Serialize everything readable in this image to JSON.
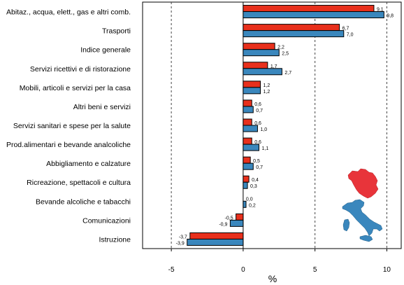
{
  "chart_data": {
    "type": "bar",
    "orientation": "horizontal",
    "categories": [
      "Abitaz., acqua, elett., gas e altri comb.",
      "Trasporti",
      "Indice generale",
      "Servizi ricettivi e di ristorazione",
      "Mobili, articoli e servizi per la casa",
      "Altri beni e servizi",
      "Servizi sanitari e spese per la salute",
      "Prod.alimentari e bevande analcoliche",
      "Abbigliamento e calzature",
      "Ricreazione, spettacoli e cultura",
      "Bevande alcoliche e tabacchi",
      "Comunicazioni",
      "Istruzione"
    ],
    "series": [
      {
        "color": "#e8301c",
        "values": [
          9.1,
          6.7,
          2.2,
          1.7,
          1.2,
          0.6,
          0.6,
          0.6,
          0.5,
          0.4,
          0.0,
          -0.5,
          -3.7
        ],
        "value_labels": [
          "9,1",
          "6,7",
          "2,2",
          "1,7",
          "1,2",
          "0,6",
          "0,6",
          "0,6",
          "0,5",
          "0,4",
          "0,0",
          "-0,5",
          "-3,7"
        ]
      },
      {
        "color": "#3a87bd",
        "values": [
          9.8,
          7.0,
          2.5,
          2.7,
          1.2,
          0.7,
          1.0,
          1.1,
          0.7,
          0.3,
          0.2,
          -0.9,
          -3.9
        ],
        "value_labels": [
          "9,8",
          "7,0",
          "2,5",
          "2,7",
          "1,2",
          "0,7",
          "1,0",
          "1,1",
          "0,7",
          "0,3",
          "0,2",
          "-0,9",
          "-3,9"
        ]
      }
    ],
    "xlim": [
      -7,
      11
    ],
    "xticks": [
      -5,
      0,
      5,
      10
    ],
    "xtick_labels": [
      "-5",
      "0",
      "5",
      "10"
    ],
    "xlabel": "%",
    "grid": "vertical dashed at ticks",
    "legend": "none",
    "inset": "map of Italy with Tuscany highlighted in red",
    "inset_colors": {
      "region": "#e8343a",
      "country": "#3a87bd"
    }
  }
}
